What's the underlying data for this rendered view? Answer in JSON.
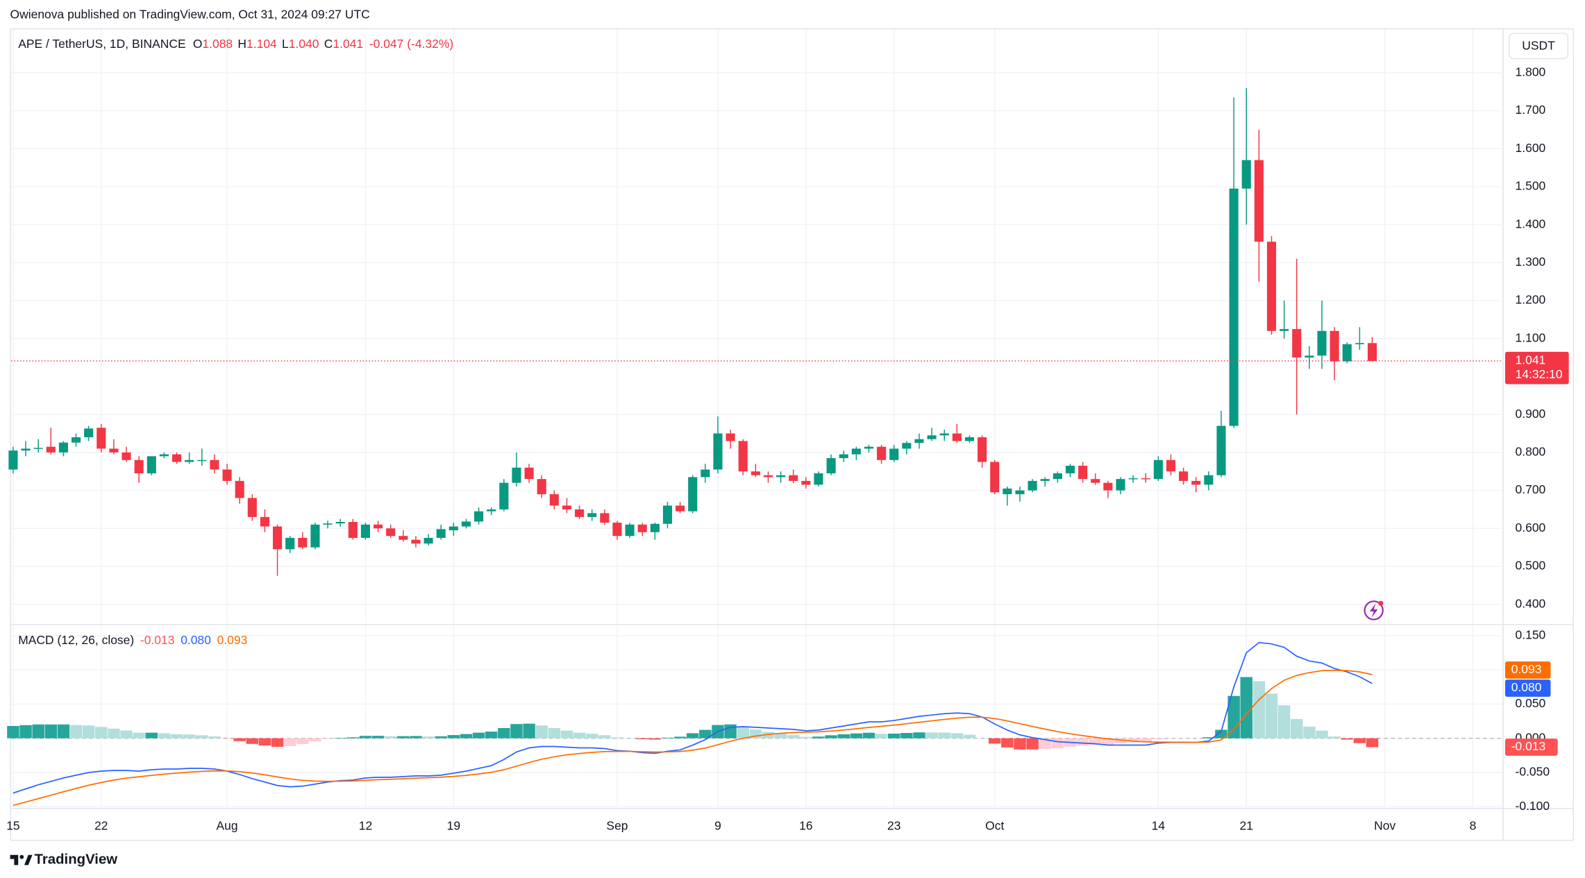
{
  "attribution": "Owienova published on TradingView.com, Oct 31, 2024 09:27 UTC",
  "brand": "TradingView",
  "chart_data": {
    "type": "candlestick",
    "header": {
      "symbol": "APE / TetherUS, 1D, BINANCE",
      "ohlc": [
        {
          "label": "O",
          "value": "1.088"
        },
        {
          "label": "H",
          "value": "1.104"
        },
        {
          "label": "L",
          "value": "1.040"
        },
        {
          "label": "C",
          "value": "1.041"
        }
      ],
      "change": "-0.047 (-4.32%)"
    },
    "currency": "USDT",
    "price_tag": {
      "label": "1.041",
      "countdown": "14:32:10"
    },
    "up_color": "#089981",
    "down_color": "#f23645",
    "grid": true,
    "x": [
      "2024-07-15",
      "2024-07-16",
      "2024-07-17",
      "2024-07-18",
      "2024-07-19",
      "2024-07-20",
      "2024-07-21",
      "2024-07-22",
      "2024-07-23",
      "2024-07-24",
      "2024-07-25",
      "2024-07-26",
      "2024-07-27",
      "2024-07-28",
      "2024-07-29",
      "2024-07-30",
      "2024-07-31",
      "2024-08-01",
      "2024-08-02",
      "2024-08-03",
      "2024-08-04",
      "2024-08-05",
      "2024-08-06",
      "2024-08-07",
      "2024-08-08",
      "2024-08-09",
      "2024-08-10",
      "2024-08-11",
      "2024-08-12",
      "2024-08-13",
      "2024-08-14",
      "2024-08-15",
      "2024-08-16",
      "2024-08-17",
      "2024-08-18",
      "2024-08-19",
      "2024-08-20",
      "2024-08-21",
      "2024-08-22",
      "2024-08-23",
      "2024-08-24",
      "2024-08-25",
      "2024-08-26",
      "2024-08-27",
      "2024-08-28",
      "2024-08-29",
      "2024-08-30",
      "2024-08-31",
      "2024-09-01",
      "2024-09-02",
      "2024-09-03",
      "2024-09-04",
      "2024-09-05",
      "2024-09-06",
      "2024-09-07",
      "2024-09-08",
      "2024-09-09",
      "2024-09-10",
      "2024-09-11",
      "2024-09-12",
      "2024-09-13",
      "2024-09-14",
      "2024-09-15",
      "2024-09-16",
      "2024-09-17",
      "2024-09-18",
      "2024-09-19",
      "2024-09-20",
      "2024-09-21",
      "2024-09-22",
      "2024-09-23",
      "2024-09-24",
      "2024-09-25",
      "2024-09-26",
      "2024-09-27",
      "2024-09-28",
      "2024-09-29",
      "2024-09-30",
      "2024-10-01",
      "2024-10-02",
      "2024-10-03",
      "2024-10-04",
      "2024-10-05",
      "2024-10-06",
      "2024-10-07",
      "2024-10-08",
      "2024-10-09",
      "2024-10-10",
      "2024-10-11",
      "2024-10-12",
      "2024-10-13",
      "2024-10-14",
      "2024-10-15",
      "2024-10-16",
      "2024-10-17",
      "2024-10-18",
      "2024-10-19",
      "2024-10-20",
      "2024-10-21",
      "2024-10-22",
      "2024-10-23",
      "2024-10-24",
      "2024-10-25",
      "2024-10-26",
      "2024-10-27",
      "2024-10-28",
      "2024-10-29",
      "2024-10-30",
      "2024-10-31"
    ],
    "xlim": [
      "2024-07-15",
      "2024-11-10"
    ],
    "xticks": [
      {
        "value": "2024-07-15",
        "label": "15"
      },
      {
        "value": "2024-07-22",
        "label": "22"
      },
      {
        "value": "2024-08-01",
        "label": "Aug"
      },
      {
        "value": "2024-08-12",
        "label": "12"
      },
      {
        "value": "2024-08-19",
        "label": "19"
      },
      {
        "value": "2024-09-01",
        "label": "Sep"
      },
      {
        "value": "2024-09-09",
        "label": "9"
      },
      {
        "value": "2024-09-16",
        "label": "16"
      },
      {
        "value": "2024-09-23",
        "label": "23"
      },
      {
        "value": "2024-10-01",
        "label": "Oct"
      },
      {
        "value": "2024-10-14",
        "label": "14"
      },
      {
        "value": "2024-10-21",
        "label": "21"
      },
      {
        "value": "2024-11-01",
        "label": "Nov"
      },
      {
        "value": "2024-11-08",
        "label": "8"
      }
    ],
    "open": [
      0.755,
      0.805,
      0.81,
      0.815,
      0.8,
      0.826,
      0.84,
      0.865,
      0.81,
      0.8,
      0.78,
      0.745,
      0.79,
      0.795,
      0.775,
      0.78,
      0.78,
      0.755,
      0.725,
      0.68,
      0.63,
      0.605,
      0.545,
      0.575,
      0.55,
      0.61,
      0.613,
      0.617,
      0.575,
      0.61,
      0.6,
      0.58,
      0.57,
      0.56,
      0.575,
      0.595,
      0.605,
      0.618,
      0.645,
      0.65,
      0.72,
      0.76,
      0.73,
      0.69,
      0.66,
      0.65,
      0.63,
      0.64,
      0.615,
      0.58,
      0.61,
      0.59,
      0.612,
      0.66,
      0.645,
      0.735,
      0.755,
      0.85,
      0.83,
      0.75,
      0.74,
      0.735,
      0.74,
      0.725,
      0.715,
      0.745,
      0.785,
      0.795,
      0.81,
      0.815,
      0.78,
      0.81,
      0.825,
      0.835,
      0.845,
      0.85,
      0.83,
      0.84,
      0.775,
      0.69,
      0.69,
      0.7,
      0.725,
      0.73,
      0.745,
      0.765,
      0.73,
      0.72,
      0.7,
      0.73,
      0.732,
      0.73,
      0.78,
      0.75,
      0.725,
      0.715,
      0.74,
      0.87,
      1.495,
      1.57,
      1.355,
      1.12,
      1.125,
      1.05,
      1.055,
      1.12,
      1.04,
      1.085,
      1.088
    ],
    "high": [
      0.815,
      0.83,
      0.835,
      0.865,
      0.83,
      0.85,
      0.87,
      0.875,
      0.835,
      0.815,
      0.79,
      0.79,
      0.8,
      0.8,
      0.8,
      0.81,
      0.795,
      0.77,
      0.735,
      0.69,
      0.65,
      0.61,
      0.58,
      0.59,
      0.615,
      0.62,
      0.625,
      0.625,
      0.615,
      0.62,
      0.61,
      0.595,
      0.58,
      0.585,
      0.61,
      0.615,
      0.625,
      0.655,
      0.655,
      0.73,
      0.8,
      0.77,
      0.74,
      0.7,
      0.68,
      0.66,
      0.65,
      0.65,
      0.62,
      0.615,
      0.615,
      0.615,
      0.67,
      0.67,
      0.74,
      0.77,
      0.895,
      0.86,
      0.835,
      0.77,
      0.75,
      0.75,
      0.755,
      0.735,
      0.75,
      0.795,
      0.805,
      0.815,
      0.82,
      0.82,
      0.82,
      0.83,
      0.85,
      0.865,
      0.86,
      0.875,
      0.845,
      0.845,
      0.78,
      0.71,
      0.71,
      0.73,
      0.735,
      0.75,
      0.77,
      0.775,
      0.745,
      0.725,
      0.735,
      0.74,
      0.745,
      0.79,
      0.795,
      0.76,
      0.735,
      0.75,
      0.91,
      1.735,
      1.76,
      1.65,
      1.37,
      1.2,
      1.31,
      1.08,
      1.2,
      1.13,
      1.09,
      1.13,
      1.104
    ],
    "low": [
      0.745,
      0.79,
      0.8,
      0.795,
      0.79,
      0.815,
      0.83,
      0.8,
      0.795,
      0.775,
      0.72,
      0.74,
      0.785,
      0.77,
      0.77,
      0.765,
      0.745,
      0.715,
      0.665,
      0.62,
      0.59,
      0.475,
      0.535,
      0.545,
      0.545,
      0.6,
      0.605,
      0.57,
      0.57,
      0.59,
      0.575,
      0.565,
      0.55,
      0.555,
      0.57,
      0.58,
      0.6,
      0.61,
      0.635,
      0.645,
      0.71,
      0.72,
      0.68,
      0.65,
      0.64,
      0.625,
      0.62,
      0.61,
      0.57,
      0.575,
      0.58,
      0.57,
      0.6,
      0.64,
      0.64,
      0.72,
      0.745,
      0.81,
      0.74,
      0.735,
      0.72,
      0.72,
      0.72,
      0.705,
      0.71,
      0.74,
      0.775,
      0.78,
      0.8,
      0.77,
      0.775,
      0.795,
      0.81,
      0.83,
      0.83,
      0.825,
      0.825,
      0.76,
      0.69,
      0.66,
      0.67,
      0.695,
      0.71,
      0.72,
      0.735,
      0.72,
      0.715,
      0.68,
      0.69,
      0.72,
      0.72,
      0.725,
      0.74,
      0.715,
      0.695,
      0.7,
      0.735,
      0.865,
      1.4,
      1.25,
      1.11,
      1.1,
      0.9,
      1.02,
      1.02,
      0.99,
      1.035,
      1.07,
      1.04
    ],
    "close": [
      0.805,
      0.81,
      0.812,
      0.8,
      0.826,
      0.84,
      0.863,
      0.81,
      0.8,
      0.78,
      0.745,
      0.79,
      0.795,
      0.775,
      0.78,
      0.78,
      0.755,
      0.725,
      0.68,
      0.63,
      0.605,
      0.545,
      0.575,
      0.55,
      0.61,
      0.613,
      0.617,
      0.575,
      0.61,
      0.6,
      0.58,
      0.57,
      0.56,
      0.575,
      0.598,
      0.605,
      0.618,
      0.645,
      0.65,
      0.72,
      0.76,
      0.73,
      0.69,
      0.66,
      0.65,
      0.63,
      0.64,
      0.615,
      0.58,
      0.61,
      0.59,
      0.612,
      0.66,
      0.645,
      0.735,
      0.755,
      0.85,
      0.83,
      0.75,
      0.74,
      0.735,
      0.74,
      0.725,
      0.715,
      0.745,
      0.785,
      0.795,
      0.81,
      0.815,
      0.78,
      0.81,
      0.825,
      0.835,
      0.845,
      0.85,
      0.83,
      0.84,
      0.775,
      0.695,
      0.705,
      0.7,
      0.725,
      0.73,
      0.745,
      0.765,
      0.73,
      0.72,
      0.7,
      0.73,
      0.732,
      0.73,
      0.78,
      0.75,
      0.725,
      0.715,
      0.74,
      0.87,
      1.495,
      1.57,
      1.355,
      1.12,
      1.125,
      1.05,
      1.055,
      1.12,
      1.04,
      1.085,
      1.088,
      1.041
    ],
    "ylim": [
      0.3494,
      1.9171
    ],
    "yticks": [
      {
        "value": 0.4,
        "label": "0.400"
      },
      {
        "value": 0.5,
        "label": "0.500"
      },
      {
        "value": 0.6,
        "label": "0.600"
      },
      {
        "value": 0.7,
        "label": "0.700"
      },
      {
        "value": 0.8,
        "label": "0.800"
      },
      {
        "value": 0.9,
        "label": "0.900"
      },
      {
        "value": 1.1,
        "label": "1.100"
      },
      {
        "value": 1.2,
        "label": "1.200"
      },
      {
        "value": 1.3,
        "label": "1.300"
      },
      {
        "value": 1.4,
        "label": "1.400"
      },
      {
        "value": 1.5,
        "label": "1.500"
      },
      {
        "value": 1.6,
        "label": "1.600"
      },
      {
        "value": 1.7,
        "label": "1.700"
      },
      {
        "value": 1.8,
        "label": "1.800"
      }
    ],
    "macd": {
      "type": "macd",
      "title": "MACD (12, 26, close)",
      "ylim": [
        -0.1026,
        0.1648
      ],
      "yticks": [
        {
          "value": -0.1,
          "label": "-0.100"
        },
        {
          "value": -0.05,
          "label": "-0.050"
        },
        {
          "value": 0,
          "label": "0.000"
        },
        {
          "value": 0.05,
          "label": "0.050"
        },
        {
          "value": 0.1,
          "label": "0.100"
        },
        {
          "value": 0.15,
          "label": "0.150"
        }
      ],
      "histogram": {
        "label": "-0.013",
        "colors": {
          "up_grow": "#26a69a",
          "up_fall": "#b2dfdb",
          "down_grow": "#ff5252",
          "down_fall": "#ffcdd2"
        },
        "values": [
          0.018,
          0.0192,
          0.0202,
          0.0202,
          0.0202,
          0.0194,
          0.0187,
          0.0166,
          0.0141,
          0.0113,
          0.0082,
          0.0082,
          0.0074,
          0.0059,
          0.0055,
          0.0044,
          0.0027,
          -0.0002,
          -0.0042,
          -0.0082,
          -0.0106,
          -0.0125,
          -0.0116,
          -0.0085,
          -0.0044,
          -0.0011,
          0.0007,
          0.0014,
          0.0035,
          0.0036,
          0.0029,
          0.0031,
          0.0033,
          0.0026,
          0.0029,
          0.0047,
          0.0062,
          0.0082,
          0.0098,
          0.015,
          0.0208,
          0.0214,
          0.0187,
          0.015,
          0.0112,
          0.0082,
          0.0066,
          0.0045,
          0.0012,
          0.0002,
          -0.0014,
          -0.0019,
          0.0009,
          0.0023,
          0.0074,
          0.0123,
          0.0194,
          0.0203,
          0.017,
          0.0128,
          0.0094,
          0.0067,
          0.0046,
          0.0021,
          0.0025,
          0.0044,
          0.0059,
          0.0071,
          0.0081,
          0.0065,
          0.0068,
          0.0078,
          0.0086,
          0.0085,
          0.0084,
          0.0075,
          0.0052,
          0.0002,
          -0.0078,
          -0.0134,
          -0.0163,
          -0.0163,
          -0.0154,
          -0.0147,
          -0.0126,
          -0.0109,
          -0.0095,
          -0.0092,
          -0.0074,
          -0.0059,
          -0.0047,
          -0.0014,
          -0.0003,
          -0.0002,
          -0.0001,
          0.0015,
          0.0124,
          0.0619,
          0.0895,
          0.0836,
          0.0653,
          0.0482,
          0.0282,
          0.017,
          0.0112,
          0.0026,
          -0.0019,
          -0.0071,
          -0.013
        ]
      },
      "series": [
        {
          "color": "#2962ff",
          "label": "0.080",
          "values": [
            -0.08,
            -0.074,
            -0.068,
            -0.063,
            -0.058,
            -0.054,
            -0.05,
            -0.048,
            -0.047,
            -0.047,
            -0.048,
            -0.046,
            -0.045,
            -0.045,
            -0.044,
            -0.044,
            -0.045,
            -0.048,
            -0.053,
            -0.059,
            -0.064,
            -0.069,
            -0.071,
            -0.07,
            -0.067,
            -0.064,
            -0.062,
            -0.061,
            -0.058,
            -0.057,
            -0.057,
            -0.056,
            -0.055,
            -0.055,
            -0.054,
            -0.051,
            -0.048,
            -0.044,
            -0.04,
            -0.031,
            -0.02,
            -0.014,
            -0.012,
            -0.012,
            -0.013,
            -0.014,
            -0.014,
            -0.015,
            -0.018,
            -0.019,
            -0.021,
            -0.022,
            -0.019,
            -0.017,
            -0.01,
            -0.002,
            0.01,
            0.016,
            0.017,
            0.016,
            0.015,
            0.014,
            0.013,
            0.011,
            0.012,
            0.015,
            0.018,
            0.021,
            0.024,
            0.024,
            0.026,
            0.029,
            0.032,
            0.034,
            0.036,
            0.037,
            0.036,
            0.031,
            0.021,
            0.012,
            0.005,
            0.001,
            -0.002,
            -0.005,
            -0.006,
            -0.007,
            -0.008,
            -0.01,
            -0.01,
            -0.01,
            -0.01,
            -0.007,
            -0.006,
            -0.006,
            -0.006,
            -0.004,
            0.01,
            0.075,
            0.125,
            0.14,
            0.138,
            0.133,
            0.12,
            0.113,
            0.11,
            0.102,
            0.097,
            0.09,
            0.08
          ]
        },
        {
          "color": "#ff6d00",
          "label": "0.093",
          "values": [
            -0.098,
            -0.0932,
            -0.0882,
            -0.0832,
            -0.0782,
            -0.0734,
            -0.0687,
            -0.0646,
            -0.0611,
            -0.0583,
            -0.0562,
            -0.0542,
            -0.0524,
            -0.0509,
            -0.0495,
            -0.0484,
            -0.0477,
            -0.0478,
            -0.0488,
            -0.0508,
            -0.0534,
            -0.0565,
            -0.0594,
            -0.0615,
            -0.0626,
            -0.0629,
            -0.0627,
            -0.0624,
            -0.0615,
            -0.0606,
            -0.0599,
            -0.0591,
            -0.0583,
            -0.0576,
            -0.0569,
            -0.0557,
            -0.0542,
            -0.0522,
            -0.0498,
            -0.046,
            -0.0408,
            -0.0354,
            -0.0307,
            -0.027,
            -0.0242,
            -0.0222,
            -0.0206,
            -0.0195,
            -0.0192,
            -0.0192,
            -0.0196,
            -0.0201,
            -0.0199,
            -0.0193,
            -0.0174,
            -0.0143,
            -0.0094,
            -0.0043,
            0,
            0.0032,
            0.0056,
            0.0073,
            0.0084,
            0.0089,
            0.0095,
            0.0106,
            0.0121,
            0.0139,
            0.0159,
            0.0175,
            0.0192,
            0.0212,
            0.0234,
            0.0255,
            0.0276,
            0.0295,
            0.0308,
            0.0308,
            0.0288,
            0.0254,
            0.0213,
            0.0173,
            0.0134,
            0.0097,
            0.0066,
            0.0039,
            0.0015,
            -0.0008,
            -0.0026,
            -0.0041,
            -0.0053,
            -0.0056,
            -0.0057,
            -0.0058,
            -0.0059,
            -0.0055,
            -0.0024,
            0.0131,
            0.0355,
            0.0564,
            0.0727,
            0.0848,
            0.0918,
            0.096,
            0.0988,
            0.0994,
            0.0989,
            0.0971,
            0.093
          ]
        }
      ]
    }
  }
}
